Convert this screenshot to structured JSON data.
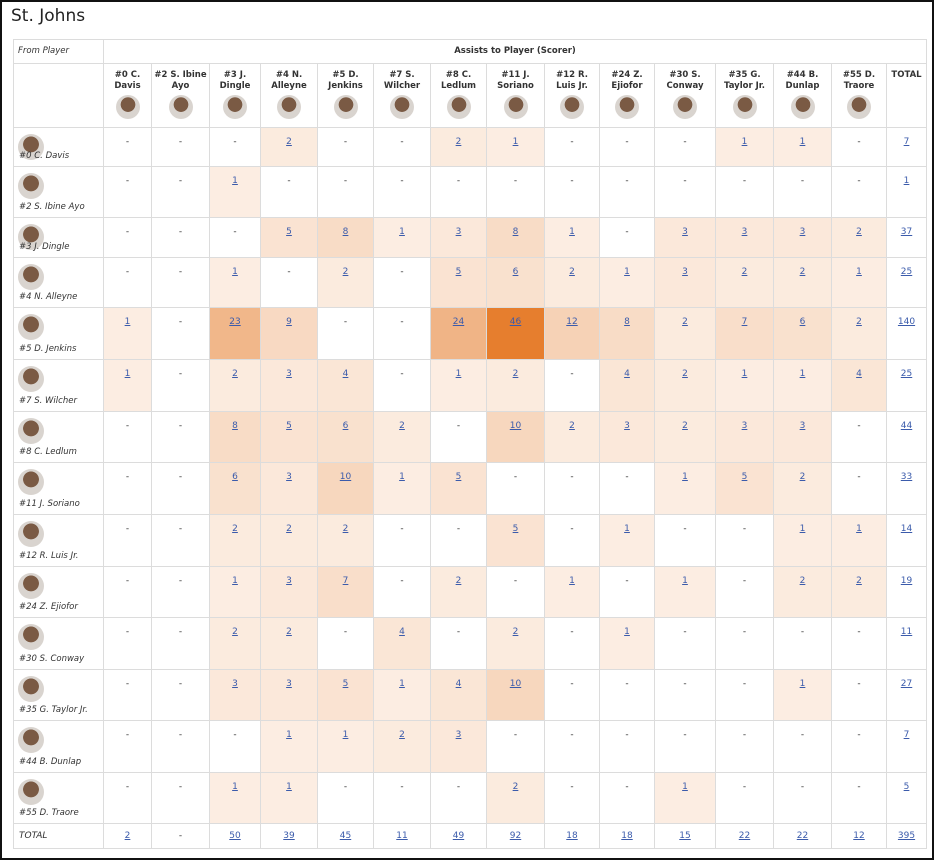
{
  "title": "St. Johns",
  "table": {
    "corner": "From Player",
    "group_header": "Assists to Player (Scorer)",
    "columns": [
      "#0 C. Davis",
      "#2 S. Ibine Ayo",
      "#3 J. Dingle",
      "#4 N. Alleyne",
      "#5 D. Jenkins",
      "#7 S. Wilcher",
      "#8 C. Ledlum",
      "#11 J. Soriano",
      "#12 R. Luis Jr.",
      "#24 Z. Ejiofor",
      "#30 S. Conway",
      "#35 G. Taylor Jr.",
      "#44 B. Dunlap",
      "#55 D. Traore",
      "TOTAL"
    ],
    "rows": [
      {
        "player": "#0 C. Davis",
        "cells": [
          "-",
          "-",
          "-",
          2,
          "-",
          "-",
          2,
          1,
          "-",
          "-",
          "-",
          1,
          1,
          "-",
          7
        ]
      },
      {
        "player": "#2 S. Ibine Ayo",
        "cells": [
          "-",
          "-",
          1,
          "-",
          "-",
          "-",
          "-",
          "-",
          "-",
          "-",
          "-",
          "-",
          "-",
          "-",
          1
        ]
      },
      {
        "player": "#3 J. Dingle",
        "cells": [
          "-",
          "-",
          "-",
          5,
          8,
          1,
          3,
          8,
          1,
          "-",
          3,
          3,
          3,
          2,
          37
        ]
      },
      {
        "player": "#4 N. Alleyne",
        "cells": [
          "-",
          "-",
          1,
          "-",
          2,
          "-",
          5,
          6,
          2,
          1,
          3,
          2,
          2,
          1,
          25
        ]
      },
      {
        "player": "#5 D. Jenkins",
        "cells": [
          1,
          "-",
          23,
          9,
          "-",
          "-",
          24,
          46,
          12,
          8,
          2,
          7,
          6,
          2,
          140
        ]
      },
      {
        "player": "#7 S. Wilcher",
        "cells": [
          1,
          "-",
          2,
          3,
          4,
          "-",
          1,
          2,
          "-",
          4,
          2,
          1,
          1,
          4,
          25
        ]
      },
      {
        "player": "#8 C. Ledlum",
        "cells": [
          "-",
          "-",
          8,
          5,
          6,
          2,
          "-",
          10,
          2,
          3,
          2,
          3,
          3,
          "-",
          44
        ]
      },
      {
        "player": "#11 J. Soriano",
        "cells": [
          "-",
          "-",
          6,
          3,
          10,
          1,
          5,
          "-",
          "-",
          "-",
          1,
          5,
          2,
          "-",
          33
        ]
      },
      {
        "player": "#12 R. Luis Jr.",
        "cells": [
          "-",
          "-",
          2,
          2,
          2,
          "-",
          "-",
          5,
          "-",
          1,
          "-",
          "-",
          1,
          1,
          14
        ]
      },
      {
        "player": "#24 Z. Ejiofor",
        "cells": [
          "-",
          "-",
          1,
          3,
          7,
          "-",
          2,
          "-",
          1,
          "-",
          1,
          "-",
          2,
          2,
          19
        ]
      },
      {
        "player": "#30 S. Conway",
        "cells": [
          "-",
          "-",
          2,
          2,
          "-",
          4,
          "-",
          2,
          "-",
          1,
          "-",
          "-",
          "-",
          "-",
          11
        ]
      },
      {
        "player": "#35 G. Taylor Jr.",
        "cells": [
          "-",
          "-",
          3,
          3,
          5,
          1,
          4,
          10,
          "-",
          "-",
          "-",
          "-",
          1,
          "-",
          27
        ]
      },
      {
        "player": "#44 B. Dunlap",
        "cells": [
          "-",
          "-",
          "-",
          1,
          1,
          2,
          3,
          "-",
          "-",
          "-",
          "-",
          "-",
          "-",
          "-",
          7
        ]
      },
      {
        "player": "#55 D. Traore",
        "cells": [
          "-",
          "-",
          1,
          1,
          "-",
          "-",
          "-",
          2,
          "-",
          "-",
          1,
          "-",
          "-",
          "-",
          5
        ]
      }
    ],
    "total_row": {
      "label": "TOTAL",
      "cells": [
        2,
        "-",
        50,
        39,
        45,
        11,
        49,
        92,
        18,
        18,
        15,
        22,
        22,
        12,
        395
      ]
    }
  }
}
